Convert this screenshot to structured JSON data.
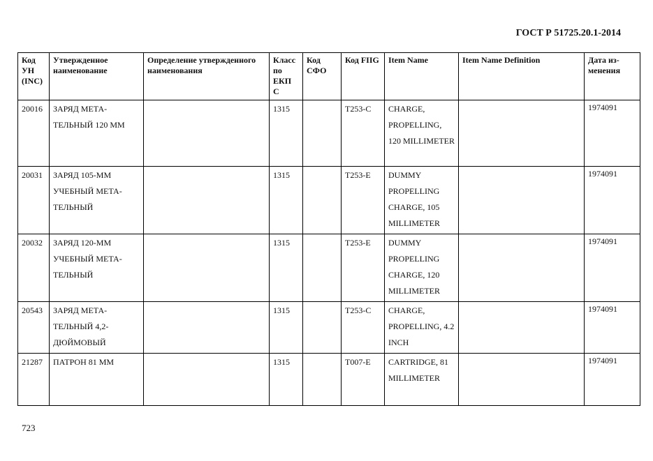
{
  "document": {
    "code": "ГОСТ Р 51725.20.1-2014",
    "page_number": "723"
  },
  "table": {
    "headers": [
      "Код УН (INC)",
      "Утвержденное наименование",
      "Определение утвержденного наименования",
      "Класс по ЕКП С",
      "Код СФО",
      "Код FIIG",
      "Item Name",
      "Item Name Definition",
      "Дата из-менения"
    ],
    "rows": [
      [
        "20016",
        "ЗАРЯД МЕТА-ТЕЛЬНЫЙ 120 ММ",
        "",
        "1315",
        "",
        "T253-C",
        "CHARGE, PROPELLING, 120 MILLIMETER",
        "",
        "1974091"
      ],
      [
        "20031",
        "ЗАРЯД 105-ММ УЧЕБНЫЙ МЕТА-ТЕЛЬНЫЙ",
        "",
        "1315",
        "",
        "T253-E",
        "DUMMY PROPELLING CHARGE, 105 MILLIMETER",
        "",
        "1974091"
      ],
      [
        "20032",
        "ЗАРЯД 120-ММ УЧЕБНЫЙ МЕТА-ТЕЛЬНЫЙ",
        "",
        "1315",
        "",
        "T253-E",
        "DUMMY PROPELLING CHARGE, 120 MILLIMETER",
        "",
        "1974091"
      ],
      [
        "20543",
        "ЗАРЯД МЕТА-ТЕЛЬНЫЙ 4,2-ДЮЙМОВЫЙ",
        "",
        "1315",
        "",
        "T253-C",
        "CHARGE, PROPELLING, 4.2 INCH",
        "",
        "1974091"
      ],
      [
        "21287",
        "ПАТРОН 81 ММ",
        "",
        "1315",
        "",
        "T007-E",
        "CARTRIDGE, 81 MILLIMETER",
        "",
        "1974091"
      ]
    ]
  }
}
